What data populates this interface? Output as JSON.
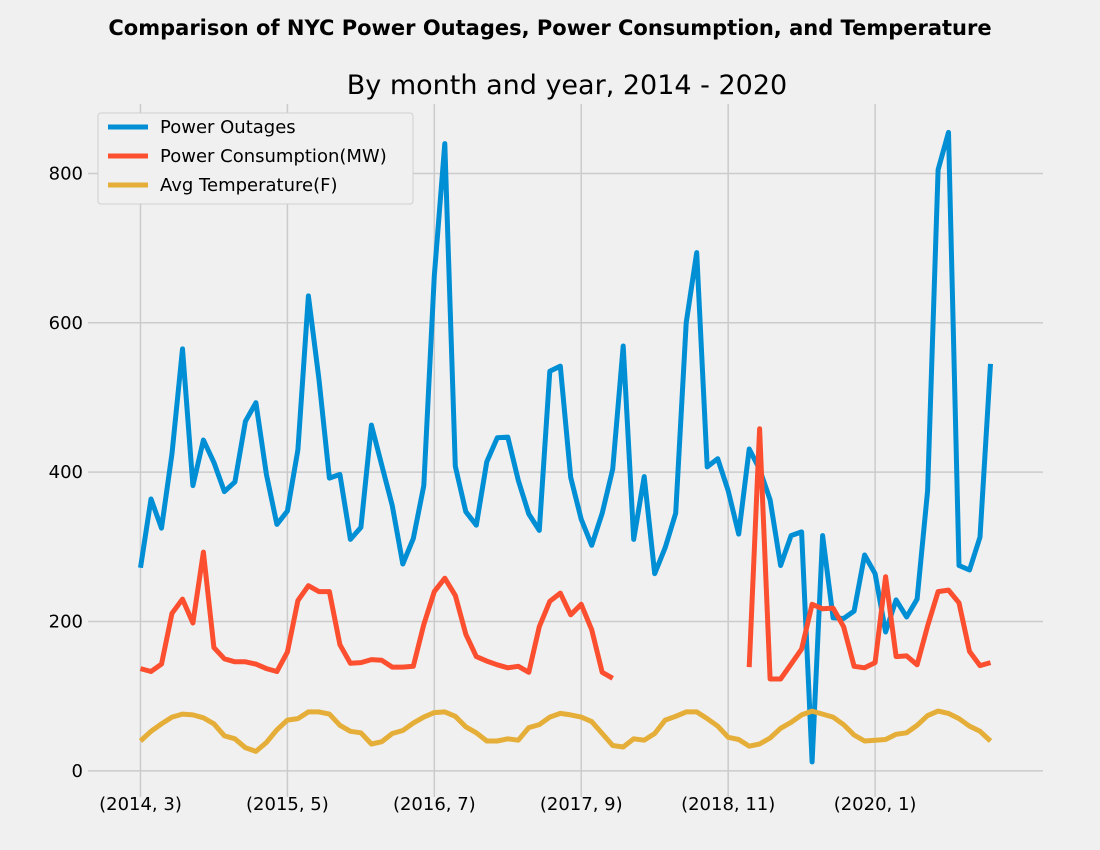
{
  "chart_data": {
    "type": "line",
    "suptitle": "Comparison of NYC Power Outages, Power Consumption, and Temperature",
    "title": "By month and year, 2014 - 2020",
    "xlabel": "",
    "ylabel": "",
    "ylim": [
      -35,
      893
    ],
    "xlim": [
      -5,
      86
    ],
    "x_ticks": [
      {
        "index": 0,
        "label": "(2014, 3)"
      },
      {
        "index": 14,
        "label": "(2015, 5)"
      },
      {
        "index": 28,
        "label": "(2016, 7)"
      },
      {
        "index": 42,
        "label": "(2017, 9)"
      },
      {
        "index": 56,
        "label": "(2018, 11)"
      },
      {
        "index": 70,
        "label": "(2020, 1)"
      }
    ],
    "y_ticks": [
      0,
      200,
      400,
      600,
      800
    ],
    "grid": true,
    "legend_position": "upper-left",
    "x": [
      0,
      1,
      2,
      3,
      4,
      5,
      6,
      7,
      8,
      9,
      10,
      11,
      12,
      13,
      14,
      15,
      16,
      17,
      18,
      19,
      20,
      21,
      22,
      23,
      24,
      25,
      26,
      27,
      28,
      29,
      30,
      31,
      32,
      33,
      34,
      35,
      36,
      37,
      38,
      39,
      40,
      41,
      42,
      43,
      44,
      45,
      46,
      47,
      48,
      49,
      50,
      51,
      52,
      53,
      54,
      55,
      56,
      57,
      58,
      59,
      60,
      61,
      62,
      63,
      64,
      65,
      66,
      67,
      68,
      69,
      70,
      71,
      72,
      73,
      74,
      75,
      76,
      77,
      78,
      79,
      80,
      81
    ],
    "series": [
      {
        "name": "Power Outages",
        "color": "#008fd5",
        "values": [
          272,
          364,
          325,
          425,
          565,
          382,
          443,
          413,
          374,
          387,
          468,
          493,
          397,
          330,
          348,
          430,
          636,
          525,
          392,
          397,
          310,
          326,
          463,
          409,
          355,
          277,
          311,
          382,
          663,
          840,
          408,
          347,
          329,
          414,
          446,
          447,
          389,
          344,
          322,
          535,
          542,
          393,
          337,
          302,
          345,
          404,
          569,
          310,
          394,
          264,
          299,
          345,
          600,
          694,
          407,
          418,
          375,
          317,
          431,
          404,
          363,
          275,
          315,
          320,
          12,
          315,
          205,
          204,
          214,
          289,
          264,
          186,
          229,
          206,
          230,
          375,
          805,
          855,
          275,
          269,
          313,
          545
        ]
      },
      {
        "name": "Power Consumption(MW)",
        "color": "#fc4f30",
        "values": [
          137,
          133,
          143,
          211,
          230,
          198,
          293,
          165,
          150,
          146,
          146,
          143,
          137,
          133,
          159,
          228,
          248,
          240,
          240,
          169,
          144,
          145,
          149,
          148,
          139,
          139,
          140,
          196,
          240,
          258,
          235,
          183,
          153,
          147,
          142,
          138,
          140,
          132,
          193,
          227,
          238,
          209,
          223,
          189,
          132,
          124,
          null,
          null,
          null,
          null,
          null,
          null,
          null,
          null,
          null,
          null,
          null,
          null,
          139,
          458,
          123,
          123,
          143,
          163,
          223,
          217,
          218,
          193,
          140,
          138,
          145,
          260,
          153,
          154,
          142,
          194,
          240,
          242,
          225,
          160,
          141,
          145
        ]
      },
      {
        "name": "Avg Temperature(F)",
        "color": "#e5ae38",
        "values": [
          40,
          53,
          63,
          72,
          76,
          75,
          71,
          63,
          47,
          43,
          31,
          26,
          38,
          55,
          68,
          70,
          79,
          79,
          76,
          61,
          53,
          51,
          36,
          39,
          50,
          54,
          64,
          72,
          78,
          79,
          73,
          59,
          51,
          40,
          40,
          43,
          41,
          58,
          62,
          72,
          77,
          75,
          72,
          66,
          50,
          34,
          32,
          43,
          41,
          50,
          68,
          73,
          79,
          79,
          70,
          60,
          45,
          42,
          33,
          36,
          44,
          57,
          65,
          75,
          80,
          76,
          72,
          62,
          48,
          40,
          41,
          42,
          49,
          51,
          61,
          74,
          80,
          77,
          70,
          60,
          53,
          40
        ]
      }
    ]
  }
}
